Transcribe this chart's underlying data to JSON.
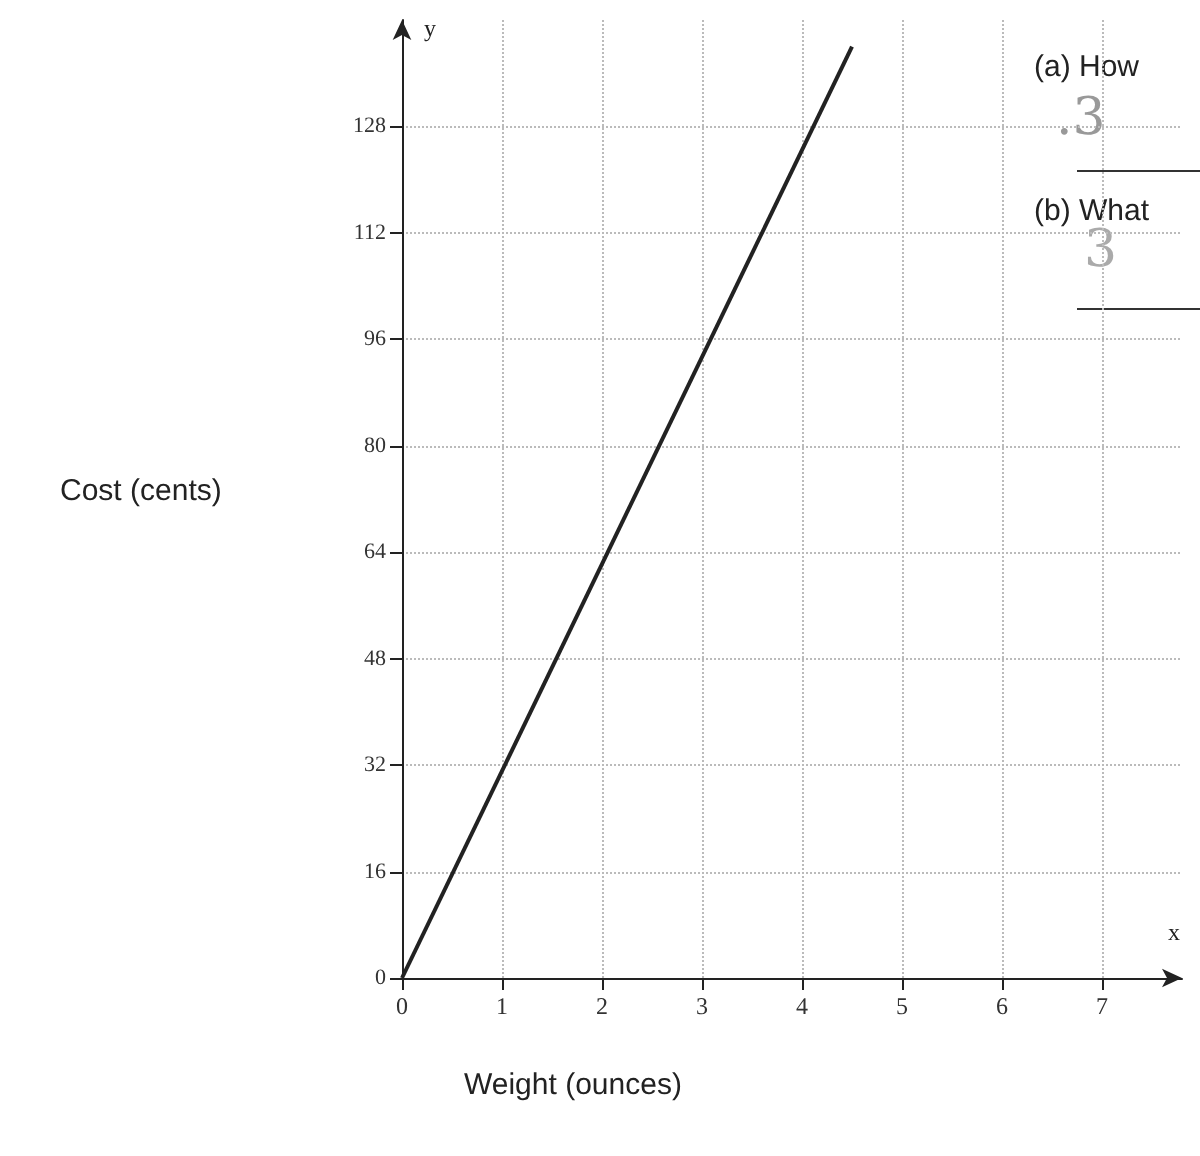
{
  "chart_data": {
    "type": "line",
    "xlabel": "Weight (ounces)",
    "ylabel": "Cost (cents)",
    "x": [
      0,
      4.5
    ],
    "series": [
      {
        "color": "#222222",
        "values": [
          0,
          140
        ]
      }
    ],
    "xlim": [
      0,
      7.8
    ],
    "ylim": [
      0,
      144
    ],
    "xticks": [
      0,
      1,
      2,
      3,
      4,
      5,
      6,
      7
    ],
    "yticks": [
      0,
      16,
      32,
      48,
      64,
      80,
      96,
      112,
      128
    ],
    "grid": true,
    "marker": "none",
    "line_style": "solid",
    "annotations": [
      "y",
      "x",
      "(a) How",
      ".3",
      "(b) What",
      "3"
    ]
  }
}
